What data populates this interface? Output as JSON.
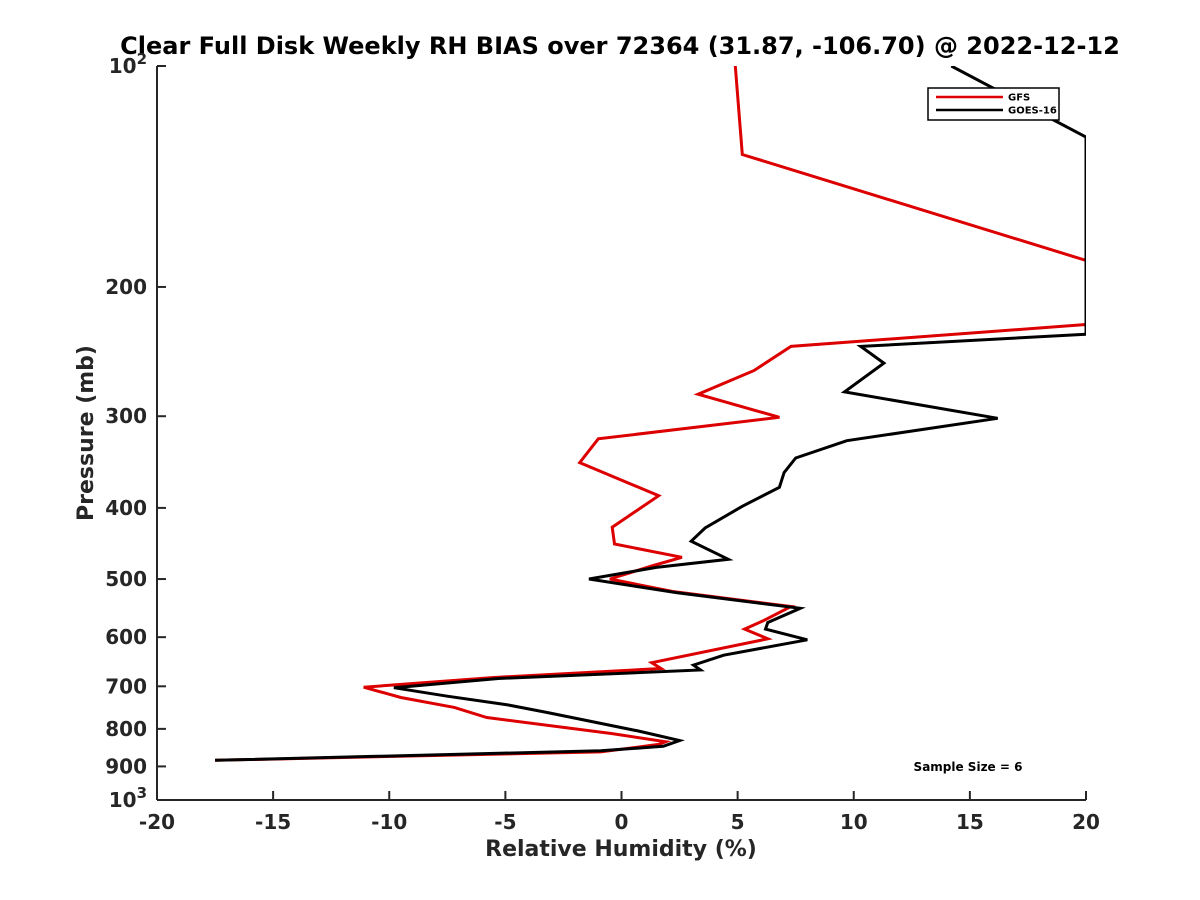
{
  "chart_data": {
    "type": "line",
    "title": "Clear Full Disk Weekly RH BIAS over 72364 (31.87, -106.70) @ 2022-12-12",
    "xlabel": "Relative Humidity (%)",
    "ylabel": "Pressure (mb)",
    "xlim": [
      -20,
      20
    ],
    "ylim": [
      100,
      1000
    ],
    "y_scale": "log",
    "y_reversed": true,
    "grid": false,
    "legend_position": "top-right",
    "x_ticks": [
      {
        "value": -20,
        "label": "-20"
      },
      {
        "value": -15,
        "label": "-15"
      },
      {
        "value": -10,
        "label": "-10"
      },
      {
        "value": -5,
        "label": "-5"
      },
      {
        "value": 0,
        "label": "0"
      },
      {
        "value": 5,
        "label": "5"
      },
      {
        "value": 10,
        "label": "10"
      },
      {
        "value": 15,
        "label": "15"
      },
      {
        "value": 20,
        "label": "20"
      }
    ],
    "y_ticks": [
      {
        "value": 100,
        "base": "10",
        "exp": "2"
      },
      {
        "value": 200,
        "label": "200"
      },
      {
        "value": 300,
        "label": "300"
      },
      {
        "value": 400,
        "label": "400"
      },
      {
        "value": 500,
        "label": "500"
      },
      {
        "value": 600,
        "label": "600"
      },
      {
        "value": 700,
        "label": "700"
      },
      {
        "value": 800,
        "label": "800"
      },
      {
        "value": 900,
        "label": "900"
      },
      {
        "value": 1000,
        "base": "10",
        "exp": "3"
      }
    ],
    "series": [
      {
        "name": "GFS",
        "color": "#dd0000",
        "points": [
          [
            4.9,
            100
          ],
          [
            5.2,
            132
          ],
          [
            10.9,
            150
          ],
          [
            20,
            184
          ],
          [
            20,
            225
          ],
          [
            7.3,
            241
          ],
          [
            5.7,
            260
          ],
          [
            3.3,
            280
          ],
          [
            6.8,
            301
          ],
          [
            -1.0,
            322
          ],
          [
            -1.8,
            347
          ],
          [
            1.6,
            385
          ],
          [
            -0.4,
            425
          ],
          [
            -0.3,
            448
          ],
          [
            2.6,
            467
          ],
          [
            1.3,
            480
          ],
          [
            -0.5,
            500
          ],
          [
            2.2,
            520
          ],
          [
            7.3,
            545
          ],
          [
            6.1,
            570
          ],
          [
            5.3,
            585
          ],
          [
            6.3,
            603
          ],
          [
            1.3,
            650
          ],
          [
            1.7,
            662
          ],
          [
            -5.5,
            681
          ],
          [
            -11.1,
            702
          ],
          [
            -9.5,
            725
          ],
          [
            -7.2,
            748
          ],
          [
            -5.8,
            772
          ],
          [
            -0.4,
            812
          ],
          [
            1.9,
            833
          ],
          [
            1.6,
            840
          ],
          [
            -0.9,
            860
          ],
          [
            -17.5,
            883
          ]
        ]
      },
      {
        "name": "GOES-16",
        "color": "#000000",
        "points": [
          [
            14.2,
            100
          ],
          [
            20,
            125
          ],
          [
            20,
            232
          ],
          [
            10.3,
            241
          ],
          [
            11.3,
            254
          ],
          [
            9.6,
            278
          ],
          [
            16.2,
            302
          ],
          [
            9.7,
            324
          ],
          [
            7.5,
            342
          ],
          [
            7.0,
            358
          ],
          [
            6.8,
            375
          ],
          [
            5.2,
            398
          ],
          [
            3.6,
            426
          ],
          [
            3.0,
            444
          ],
          [
            4.6,
            470
          ],
          [
            1.5,
            482
          ],
          [
            -1.4,
            500
          ],
          [
            2.4,
            522
          ],
          [
            7.7,
            548
          ],
          [
            6.3,
            573
          ],
          [
            6.2,
            585
          ],
          [
            8.0,
            605
          ],
          [
            4.4,
            635
          ],
          [
            3.1,
            655
          ],
          [
            3.4,
            665
          ],
          [
            -5.3,
            683
          ],
          [
            -9.8,
            703
          ],
          [
            -7.5,
            722
          ],
          [
            -4.9,
            742
          ],
          [
            -3.2,
            760
          ],
          [
            0.7,
            805
          ],
          [
            2.5,
            830
          ],
          [
            1.8,
            845
          ],
          [
            -0.9,
            857
          ],
          [
            -17.5,
            883
          ]
        ]
      }
    ],
    "annotations": [
      {
        "text": "Sample Size = 6"
      }
    ]
  }
}
